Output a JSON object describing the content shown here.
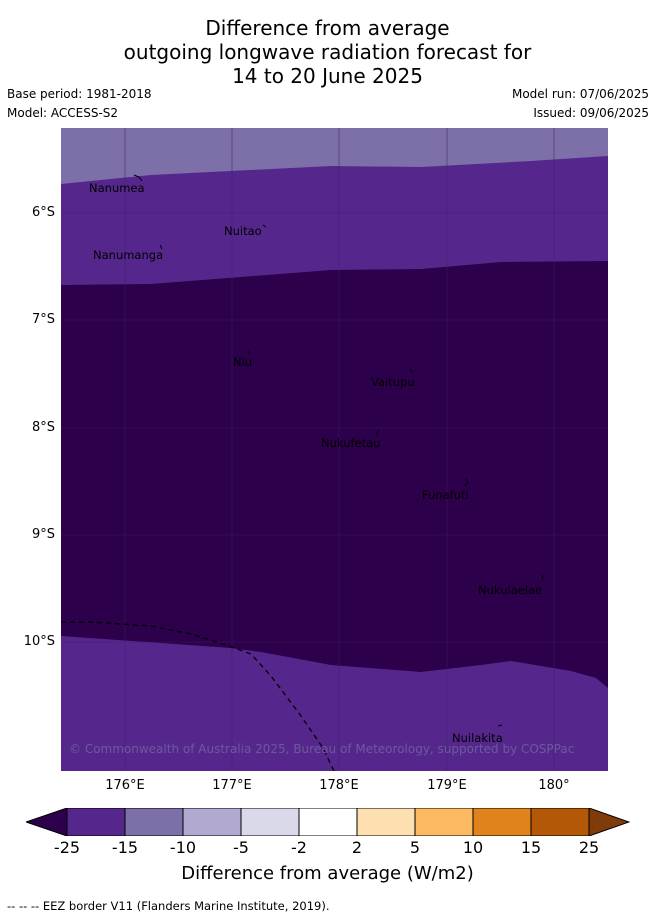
{
  "title": {
    "line1": "Difference from average",
    "line2": "outgoing longwave radiation forecast for",
    "line3": "14 to 20 June 2025"
  },
  "meta": {
    "base_period": "Base period: 1981-2018",
    "model": "Model: ACCESS-S2",
    "model_run": "Model run: 07/06/2025",
    "issued": "Issued: 09/06/2025"
  },
  "map": {
    "lon_range": [
      175.4,
      180.5
    ],
    "lat_range": [
      -5.4,
      -11.4
    ],
    "lat_labels": [
      "6°S",
      "7°S",
      "8°S",
      "9°S",
      "10°S"
    ],
    "lon_labels": [
      "176°E",
      "177°E",
      "178°E",
      "179°E",
      "180°"
    ],
    "places": [
      {
        "name": "Nanumea"
      },
      {
        "name": "Nuitao"
      },
      {
        "name": "Nanumanga"
      },
      {
        "name": "Niu"
      },
      {
        "name": "Vaitupu"
      },
      {
        "name": "Nukufetau"
      },
      {
        "name": "Funafuti"
      },
      {
        "name": "Nukulaelae"
      },
      {
        "name": "Nuilakita"
      }
    ],
    "copyright": "© Commonwealth of Australia 2025, Bureau of Meteorology, supported by COSPPac"
  },
  "colorbar": {
    "ticks": [
      "-25",
      "-15",
      "-10",
      "-5",
      "-2",
      "2",
      "5",
      "10",
      "15",
      "25"
    ],
    "colors": [
      "#55278d",
      "#7d6fa8",
      "#b2a9d0",
      "#d9d9ea",
      "#ffffff",
      "#fddfb0",
      "#fdb862",
      "#e1831c",
      "#b35807"
    ],
    "under_color": "#2d004b",
    "over_color": "#7f3b08",
    "label": "Difference from average (W/m2)"
  },
  "footer": "-- -- -- EEZ border V11 (Flanders Marine Institute, 2019)."
}
